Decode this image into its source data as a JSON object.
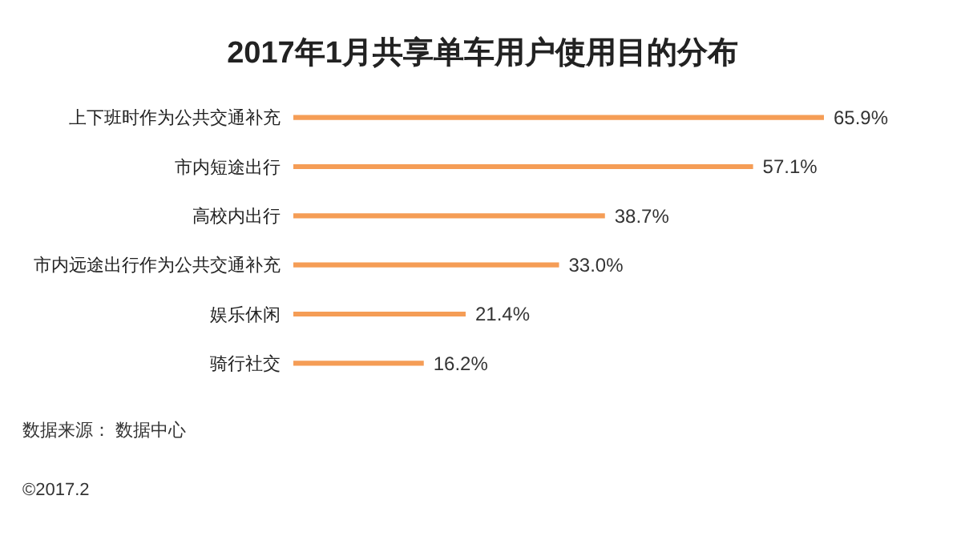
{
  "chart_data": {
    "type": "bar",
    "orientation": "horizontal",
    "title": "2017年1月共享单车用户使用目的分布",
    "categories": [
      "上下班时作为公共交通补充",
      "市内短途出行",
      "高校内出行",
      "市内远途出行作为公共交通补充",
      "娱乐休闲",
      "骑行社交"
    ],
    "values": [
      65.9,
      57.1,
      38.7,
      33.0,
      21.4,
      16.2
    ],
    "value_labels": [
      "65.9%",
      "57.1%",
      "38.7%",
      "33.0%",
      "21.4%",
      "16.2%"
    ],
    "color": "#f59d56",
    "annotations": [
      "数据来源： 数据中心",
      "©2017.2"
    ]
  }
}
